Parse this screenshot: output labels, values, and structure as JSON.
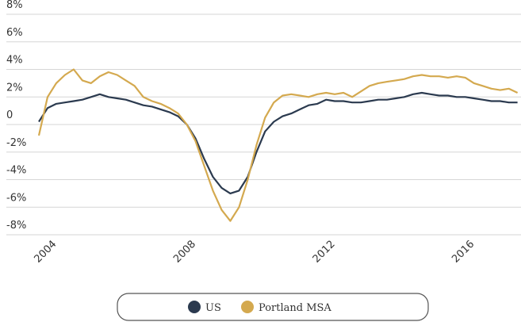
{
  "chart_data": {
    "type": "line",
    "x": [
      2003.75,
      2004,
      2004.25,
      2004.5,
      2004.75,
      2005,
      2005.25,
      2005.5,
      2005.75,
      2006,
      2006.25,
      2006.5,
      2006.75,
      2007,
      2007.25,
      2007.5,
      2007.75,
      2008,
      2008.25,
      2008.5,
      2008.75,
      2009,
      2009.25,
      2009.5,
      2009.75,
      2010,
      2010.25,
      2010.5,
      2010.75,
      2011,
      2011.25,
      2011.5,
      2011.75,
      2012,
      2012.25,
      2012.5,
      2012.75,
      2013,
      2013.25,
      2013.5,
      2013.75,
      2014,
      2014.25,
      2014.5,
      2014.75,
      2015,
      2015.25,
      2015.5,
      2015.75,
      2016,
      2016.25,
      2016.5,
      2016.75,
      2017,
      2017.25,
      2017.5
    ],
    "series": [
      {
        "name": "US",
        "color": "#2b3a4f",
        "values": [
          0.2,
          1.2,
          1.5,
          1.6,
          1.7,
          1.8,
          2.0,
          2.2,
          2.0,
          1.9,
          1.8,
          1.6,
          1.4,
          1.3,
          1.1,
          0.9,
          0.6,
          0.0,
          -1.0,
          -2.5,
          -3.8,
          -4.6,
          -5.0,
          -4.8,
          -3.8,
          -2.0,
          -0.5,
          0.2,
          0.6,
          0.8,
          1.1,
          1.4,
          1.5,
          1.8,
          1.7,
          1.7,
          1.6,
          1.6,
          1.7,
          1.8,
          1.8,
          1.9,
          2.0,
          2.2,
          2.3,
          2.2,
          2.1,
          2.1,
          2.0,
          2.0,
          1.9,
          1.8,
          1.7,
          1.7,
          1.6,
          1.6
        ]
      },
      {
        "name": "Portland MSA",
        "color": "#d4a94f",
        "values": [
          -0.8,
          2.0,
          3.0,
          3.6,
          4.0,
          3.2,
          3.0,
          3.5,
          3.8,
          3.6,
          3.2,
          2.8,
          2.0,
          1.7,
          1.5,
          1.2,
          0.8,
          0.0,
          -1.2,
          -3.0,
          -4.8,
          -6.2,
          -7.0,
          -6.0,
          -4.0,
          -1.5,
          0.5,
          1.6,
          2.1,
          2.2,
          2.1,
          2.0,
          2.2,
          2.3,
          2.2,
          2.3,
          2.0,
          2.4,
          2.8,
          3.0,
          3.1,
          3.2,
          3.3,
          3.5,
          3.6,
          3.5,
          3.5,
          3.4,
          3.5,
          3.4,
          3.0,
          2.8,
          2.6,
          2.5,
          2.6,
          2.3
        ]
      }
    ],
    "xlim": [
      2003.5,
      2017.6
    ],
    "xticks": [
      2004,
      2008,
      2012,
      2016
    ],
    "ylim": [
      -8,
      8
    ],
    "yticks": [
      {
        "value": 8,
        "label": "8%"
      },
      {
        "value": 6,
        "label": "6%"
      },
      {
        "value": 4,
        "label": "4%"
      },
      {
        "value": 2,
        "label": "2%"
      },
      0,
      {
        "value": -2,
        "label": "-2%"
      },
      {
        "value": -4,
        "label": "-4%"
      },
      {
        "value": -6,
        "label": "-6%"
      },
      {
        "value": -8,
        "label": "-8%"
      }
    ],
    "grid": true
  }
}
